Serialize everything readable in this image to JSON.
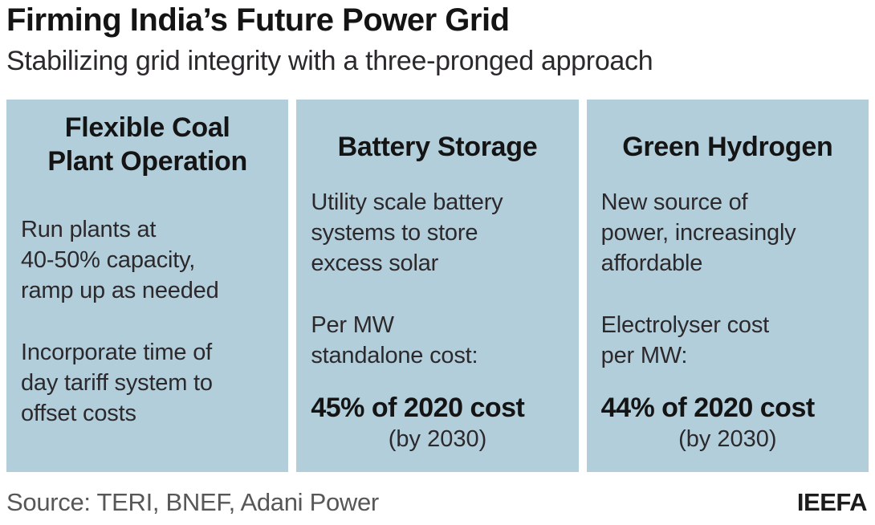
{
  "header": {
    "title": "Firming India’s Future Power Grid",
    "subtitle": "Stabilizing grid integrity with a three-pronged approach"
  },
  "panels": [
    {
      "title": "Flexible Coal\nPlant Operation",
      "paragraphs": [
        "Run plants at\n40-50% capacity,\nramp up as needed",
        "Incorporate time of\nday tariff system to\noffset costs"
      ]
    },
    {
      "title": "Battery Storage",
      "paragraphs": [
        "Utility scale battery\nsystems to store\nexcess solar",
        "Per MW\nstandalone cost:"
      ],
      "highlight": "45% of 2020 cost",
      "highlight_note": "(by 2030)"
    },
    {
      "title": "Green Hydrogen",
      "paragraphs": [
        "New source of\npower, increasingly\naffordable",
        "Electrolyser cost\nper MW:"
      ],
      "highlight": "44% of 2020 cost",
      "highlight_note": "(by 2030)"
    }
  ],
  "footer": {
    "source": "Source: TERI, BNEF, Adani Power",
    "attribution": "IEEFA"
  },
  "colors": {
    "panel_bg": "#b3cedb",
    "heading_text": "#141414",
    "body_text": "#2b292c",
    "source_text": "#575757"
  }
}
